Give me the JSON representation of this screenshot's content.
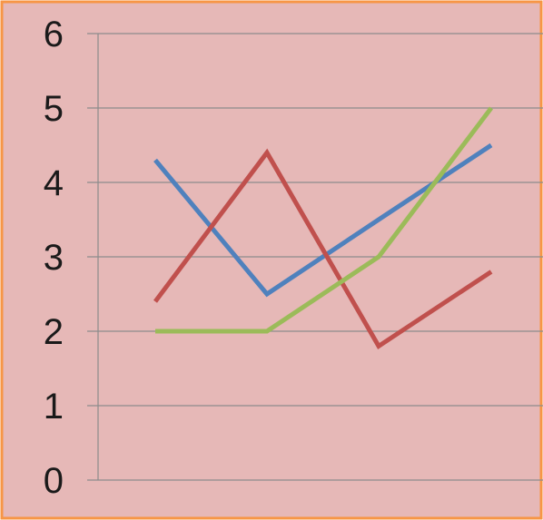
{
  "chart_data": {
    "type": "line",
    "categories": [
      "",
      "",
      "",
      ""
    ],
    "ylim": [
      0,
      6
    ],
    "yticks": [
      "0",
      "1",
      "2",
      "3",
      "4",
      "5",
      "6"
    ],
    "grid": true,
    "legend": "none",
    "series": [
      {
        "color": "#4f81bd",
        "values": [
          4.3,
          2.5,
          3.5,
          4.5
        ]
      },
      {
        "color": "#c0504d",
        "values": [
          2.4,
          4.4,
          1.8,
          2.8
        ]
      },
      {
        "color": "#9bbb59",
        "values": [
          2.0,
          2.0,
          3.0,
          5.0
        ]
      }
    ]
  },
  "style": {
    "background": "#e6b8b7",
    "border": "#f79646",
    "gridline": "#8c8c8c"
  }
}
